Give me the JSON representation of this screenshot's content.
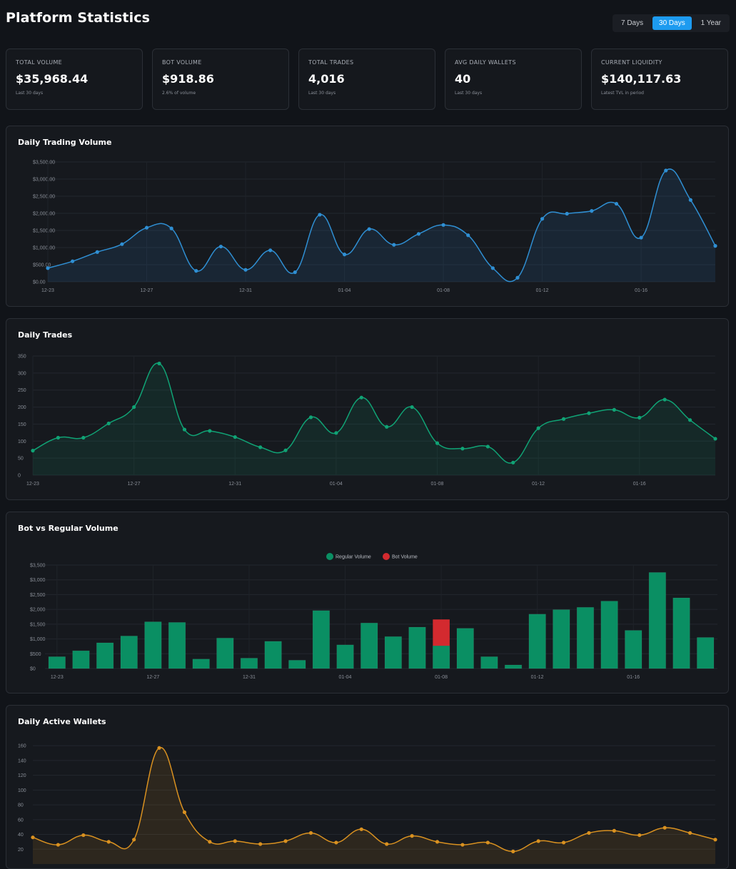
{
  "header": {
    "title": "Platform Statistics",
    "ranges": [
      "7 Days",
      "30 Days",
      "1 Year"
    ],
    "active_range": "30 Days"
  },
  "stats": [
    {
      "label": "TOTAL VOLUME",
      "value": "$35,968.44",
      "sub": "Last 30 days"
    },
    {
      "label": "BOT VOLUME",
      "value": "$918.86",
      "sub": "2.6% of volume"
    },
    {
      "label": "TOTAL TRADES",
      "value": "4,016",
      "sub": "Last 30 days"
    },
    {
      "label": "AVG DAILY WALLETS",
      "value": "40",
      "sub": "Last 30 days"
    },
    {
      "label": "CURRENT LIQUIDITY",
      "value": "$140,117.63",
      "sub": "Latest TVL in period"
    }
  ],
  "colors": {
    "accent": "#1d9bf0",
    "volume": "#2f8fd3",
    "trades": "#10a375",
    "regular": "#0a8f63",
    "bot": "#d32a2f",
    "wallets": "#d99120"
  },
  "chart_data": [
    {
      "id": "volume",
      "type": "area",
      "title": "Daily Trading Volume",
      "x_ticks": [
        "12-23",
        "12-27",
        "12-31",
        "01-04",
        "01-08",
        "01-12",
        "01-16"
      ],
      "y_ticks": [
        "$0.00",
        "$500.00",
        "$1,000.00",
        "$1,500.00",
        "$2,000.00",
        "$2,500.00",
        "$3,000.00",
        "$3,500.00"
      ],
      "ylim": [
        0,
        3500
      ],
      "values": [
        400,
        600,
        870,
        1100,
        1580,
        1560,
        320,
        1030,
        350,
        920,
        280,
        1960,
        800,
        1540,
        1080,
        1400,
        1660,
        1360,
        400,
        120,
        1840,
        1990,
        2070,
        2280,
        1290,
        3250,
        2390,
        1050
      ]
    },
    {
      "id": "trades",
      "type": "area",
      "title": "Daily Trades",
      "x_ticks": [
        "12-23",
        "12-27",
        "12-31",
        "01-04",
        "01-08",
        "01-12",
        "01-16"
      ],
      "y_ticks": [
        "0",
        "50",
        "100",
        "150",
        "200",
        "250",
        "300",
        "350"
      ],
      "ylim": [
        0,
        350
      ],
      "values": [
        72,
        110,
        110,
        152,
        200,
        328,
        134,
        130,
        112,
        82,
        73,
        170,
        124,
        228,
        142,
        200,
        94,
        78,
        84,
        37,
        138,
        165,
        182,
        192,
        169,
        222,
        162,
        107
      ]
    },
    {
      "id": "botvsreg",
      "type": "bar",
      "title": "Bot vs Regular Volume",
      "legend": [
        "Regular Volume",
        "Bot Volume"
      ],
      "x_ticks": [
        "12-23",
        "12-27",
        "12-31",
        "01-04",
        "01-08",
        "01-12",
        "01-16"
      ],
      "y_ticks": [
        "$0",
        "$500",
        "$1,000",
        "$1,500",
        "$2,000",
        "$2,500",
        "$3,000",
        "$3,500"
      ],
      "ylim": [
        0,
        3500
      ],
      "series": [
        {
          "name": "Regular Volume",
          "values": [
            400,
            600,
            870,
            1100,
            1580,
            1560,
            320,
            1030,
            350,
            920,
            280,
            1960,
            800,
            1540,
            1080,
            1400,
            770,
            1360,
            400,
            120,
            1840,
            1990,
            2070,
            2280,
            1290,
            3250,
            2390,
            1050
          ]
        },
        {
          "name": "Bot Volume",
          "values": [
            0,
            0,
            0,
            0,
            0,
            0,
            0,
            0,
            0,
            0,
            0,
            0,
            0,
            0,
            0,
            0,
            890,
            0,
            0,
            0,
            0,
            0,
            0,
            0,
            0,
            0,
            0,
            0
          ]
        }
      ]
    },
    {
      "id": "wallets",
      "type": "area",
      "title": "Daily Active Wallets",
      "y_ticks": [
        "20",
        "40",
        "60",
        "80",
        "100",
        "120",
        "140",
        "160"
      ],
      "ylim": [
        0,
        165
      ],
      "values": [
        36,
        26,
        39,
        30,
        33,
        157,
        70,
        30,
        31,
        27,
        31,
        42,
        29,
        47,
        27,
        38,
        30,
        26,
        29,
        17,
        31,
        29,
        42,
        45,
        39,
        49,
        42,
        33
      ]
    }
  ]
}
